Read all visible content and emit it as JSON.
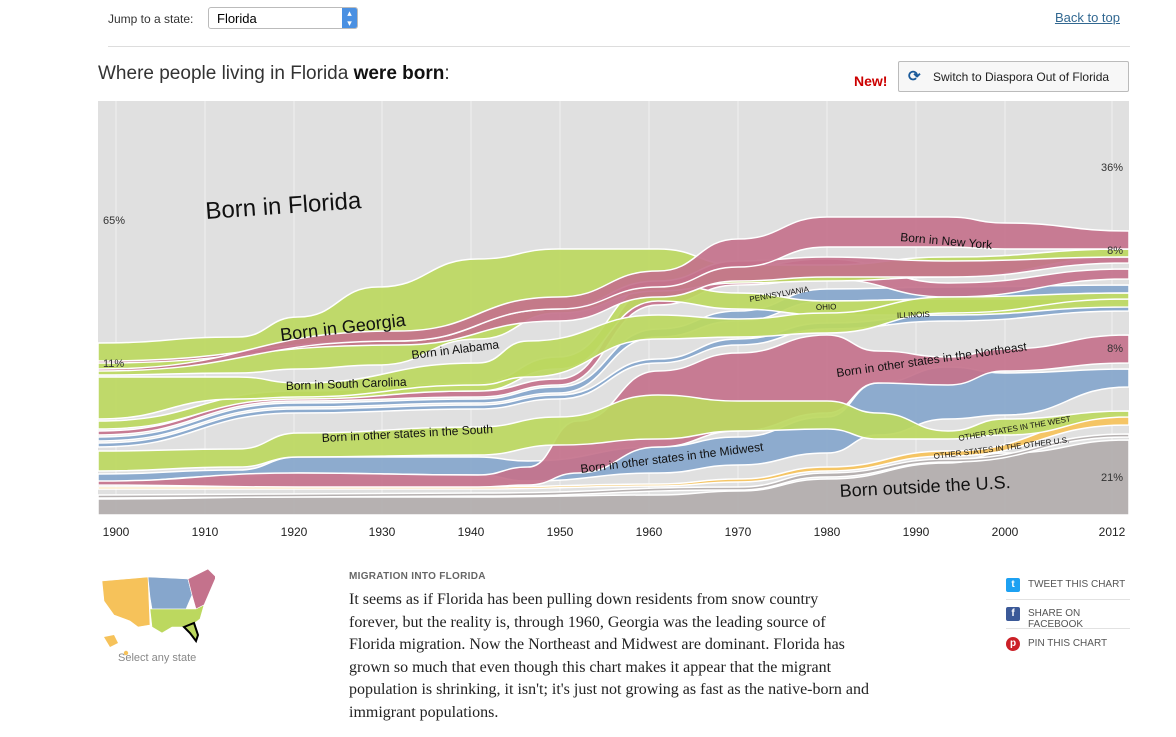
{
  "header": {
    "jump_label": "Jump to a state:",
    "selected_state": "Florida",
    "back_to_top": "Back to top"
  },
  "headline": {
    "prefix": "Where people living in Florida ",
    "bold": "were born",
    "suffix": ":"
  },
  "new_badge": "New!",
  "switch_button": "Switch to Diaspora Out of Florida",
  "chart_data": {
    "type": "area",
    "x_ticks": [
      "1900",
      "1910",
      "1920",
      "1930",
      "1940",
      "1950",
      "1960",
      "1970",
      "1980",
      "1990",
      "2000",
      "2012"
    ],
    "start_labels": [
      {
        "text": "65%",
        "color": "#e0e0e0"
      },
      {
        "text": "11%",
        "color": "#bcd85f"
      }
    ],
    "end_labels": [
      {
        "text": "36%",
        "color": "#e0e0e0"
      },
      {
        "text": "8%",
        "color": "#c4728c"
      },
      {
        "text": "8%",
        "color": "#c4728c"
      },
      {
        "text": "21%",
        "color": "#b2acac"
      }
    ],
    "series": [
      {
        "name": "Born in Florida",
        "color": "#e0e0e0"
      },
      {
        "name": "Born in Georgia",
        "color": "#bcd85f"
      },
      {
        "name": "Born in Alabama",
        "color": "#bcd85f"
      },
      {
        "name": "Born in South Carolina",
        "color": "#bcd85f"
      },
      {
        "name": "Born in other states in the South",
        "color": "#bcd85f"
      },
      {
        "name": "Born in New York",
        "color": "#c4728c"
      },
      {
        "name": "PENNSYLVANIA",
        "color": "#c4728c"
      },
      {
        "name": "OHIO",
        "color": "#86a6cc"
      },
      {
        "name": "ILLINOIS",
        "color": "#86a6cc"
      },
      {
        "name": "Born in other states in the Northeast",
        "color": "#c4728c"
      },
      {
        "name": "Born in other states in the Midwest",
        "color": "#86a6cc"
      },
      {
        "name": "OTHER STATES IN THE WEST",
        "color": "#f6c25a"
      },
      {
        "name": "OTHER STATES IN THE OTHER U.S.",
        "color": "#b2acac"
      },
      {
        "name": "Born outside the U.S.",
        "color": "#b2acac"
      }
    ],
    "colors": {
      "background": "#e0e0e0",
      "south": "#bcd85f",
      "northeast": "#c4728c",
      "midwest": "#86a6cc",
      "west": "#f6c25a",
      "foreign": "#b2acac"
    }
  },
  "map": {
    "caption": "Select any state"
  },
  "article": {
    "title": "MIGRATION INTO FLORIDA",
    "body": "It seems as if Florida has been pulling down residents from snow country forever, but the reality is, through 1960, Georgia was the leading source of Florida migration. Now the Northeast and Midwest are dominant. Florida has grown so much that even though this chart makes it appear that the migrant population is shrinking, it isn't; it's just not growing as fast as the native-born and immigrant populations."
  },
  "share": [
    {
      "label": "TWEET THIS CHART",
      "icon": "twitter-icon",
      "color": "#1da1f2"
    },
    {
      "label": "SHARE ON FACEBOOK",
      "icon": "facebook-icon",
      "color": "#3b5998"
    },
    {
      "label": "PIN THIS CHART",
      "icon": "pinterest-icon",
      "color": "#cb2027"
    }
  ]
}
